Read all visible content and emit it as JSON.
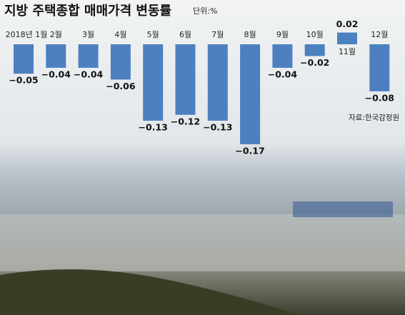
{
  "chart_data": {
    "type": "bar",
    "title": "지방 주택종합 매매가격 변동률",
    "unit": "단위:%",
    "categories": [
      "2018년 1월",
      "2월",
      "3월",
      "4월",
      "5월",
      "6월",
      "7월",
      "8월",
      "9월",
      "10월",
      "11월",
      "12월"
    ],
    "values": [
      -0.05,
      -0.04,
      -0.04,
      -0.06,
      -0.13,
      -0.12,
      -0.13,
      -0.17,
      -0.04,
      -0.02,
      0.02,
      -0.08
    ],
    "value_labels": [
      "−0.05",
      "−0.04",
      "−0.04",
      "−0.06",
      "−0.13",
      "−0.12",
      "−0.13",
      "−0.17",
      "−0.04",
      "−0.02",
      "0.02",
      "−0.08"
    ],
    "color": "#4d80c0",
    "source": "자료:한국감정원"
  }
}
